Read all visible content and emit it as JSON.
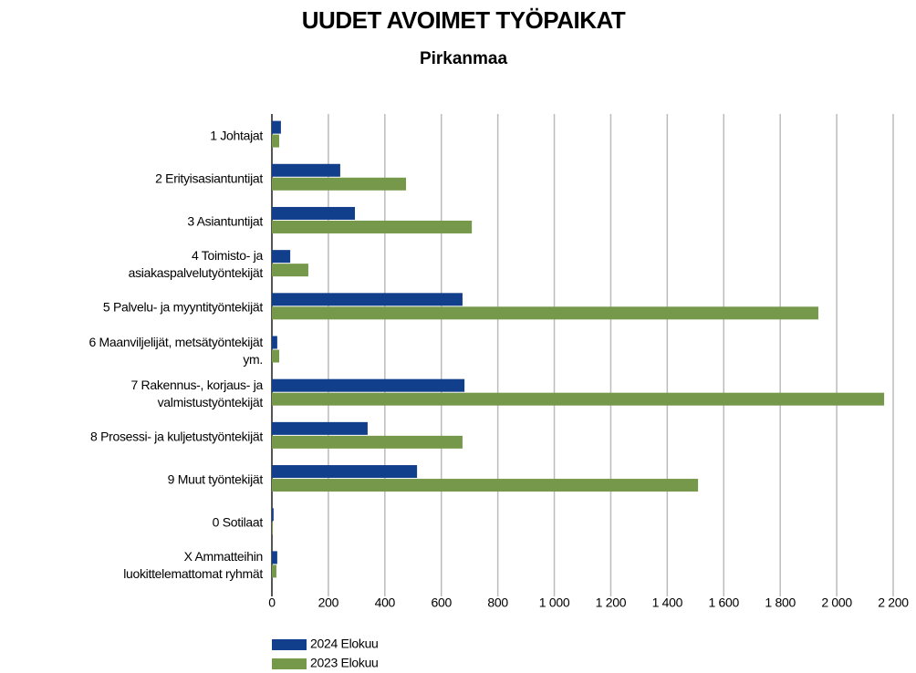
{
  "chart_data": {
    "type": "hbar",
    "title": "UUDET AVOIMET TYÖPAIKAT",
    "subtitle": "Pirkanmaa",
    "categories": [
      "1 Johtajat",
      "2 Erityisasiantuntijat",
      "3 Asiantuntijat",
      "4 Toimisto- ja\nasiakaspalvelutyöntekijät",
      "5 Palvelu- ja myyntityöntekijät",
      "6 Maanviljelijät, metsätyöntekijät\nym.",
      "7 Rakennus-, korjaus- ja\nvalmistustyöntekijät",
      "8 Prosessi- ja kuljetustyöntekijät",
      "9 Muut työntekijät",
      "0 Sotilaat",
      "X Ammatteihin\nluokittelemattomat ryhmät"
    ],
    "series": [
      {
        "name": "2024 Elokuu",
        "color": "#123f8c",
        "values": [
          32,
          242,
          294,
          65,
          675,
          19,
          682,
          339,
          514,
          6,
          19
        ]
      },
      {
        "name": "2023 Elokuu",
        "color": "#76984a",
        "values": [
          26,
          475,
          708,
          129,
          1935,
          26,
          2168,
          675,
          1509,
          3,
          16
        ]
      }
    ],
    "xlim": [
      0,
      2200
    ],
    "xticks": [
      0,
      200,
      400,
      600,
      800,
      {
        "value": 1000,
        "label": "1 000"
      },
      {
        "value": 1200,
        "label": "1 200"
      },
      {
        "value": 1400,
        "label": "1 400"
      },
      {
        "value": 1600,
        "label": "1 600"
      },
      {
        "value": 1800,
        "label": "1 800"
      },
      {
        "value": 2000,
        "label": "2 000"
      },
      {
        "value": 2200,
        "label": "2 200"
      }
    ],
    "grid": true
  }
}
